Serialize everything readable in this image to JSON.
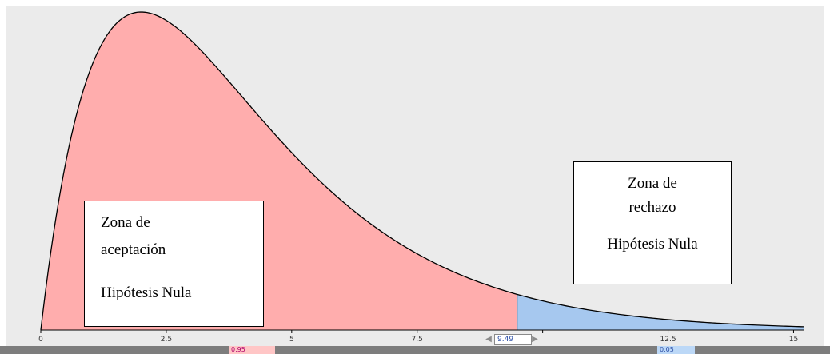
{
  "chart_data": {
    "type": "area",
    "distribution": "chi-square",
    "degrees_of_freedom": 4,
    "xlim": [
      0,
      15.2
    ],
    "x_ticks": [
      0,
      2.5,
      5,
      7.5,
      10,
      12.5,
      15
    ],
    "x_tick_labels": [
      "0",
      "2.5",
      "5",
      "7.5",
      "",
      "12.5",
      "15"
    ],
    "critical_value": "9.49",
    "regions": [
      {
        "from": 0,
        "to": 9.49,
        "probability": "0.95",
        "color": "#ffadad"
      },
      {
        "from": 9.49,
        "to": 15.2,
        "probability": "0.05",
        "color": "#a6c8ef"
      }
    ],
    "curve_color": "#000000",
    "background": "#ebebeb"
  },
  "annotations": {
    "accept": {
      "line1": "Zona de",
      "line2": "aceptación",
      "line3": "Hipótesis Nula"
    },
    "reject": {
      "line1": "Zona de",
      "line2": "rechazo",
      "line3": "Hipótesis Nula"
    }
  },
  "controls": {
    "critical_value": "9.49",
    "left_prob": "0.95",
    "right_prob": "0.05",
    "left_arrow": "◀",
    "right_arrow": "▶"
  }
}
